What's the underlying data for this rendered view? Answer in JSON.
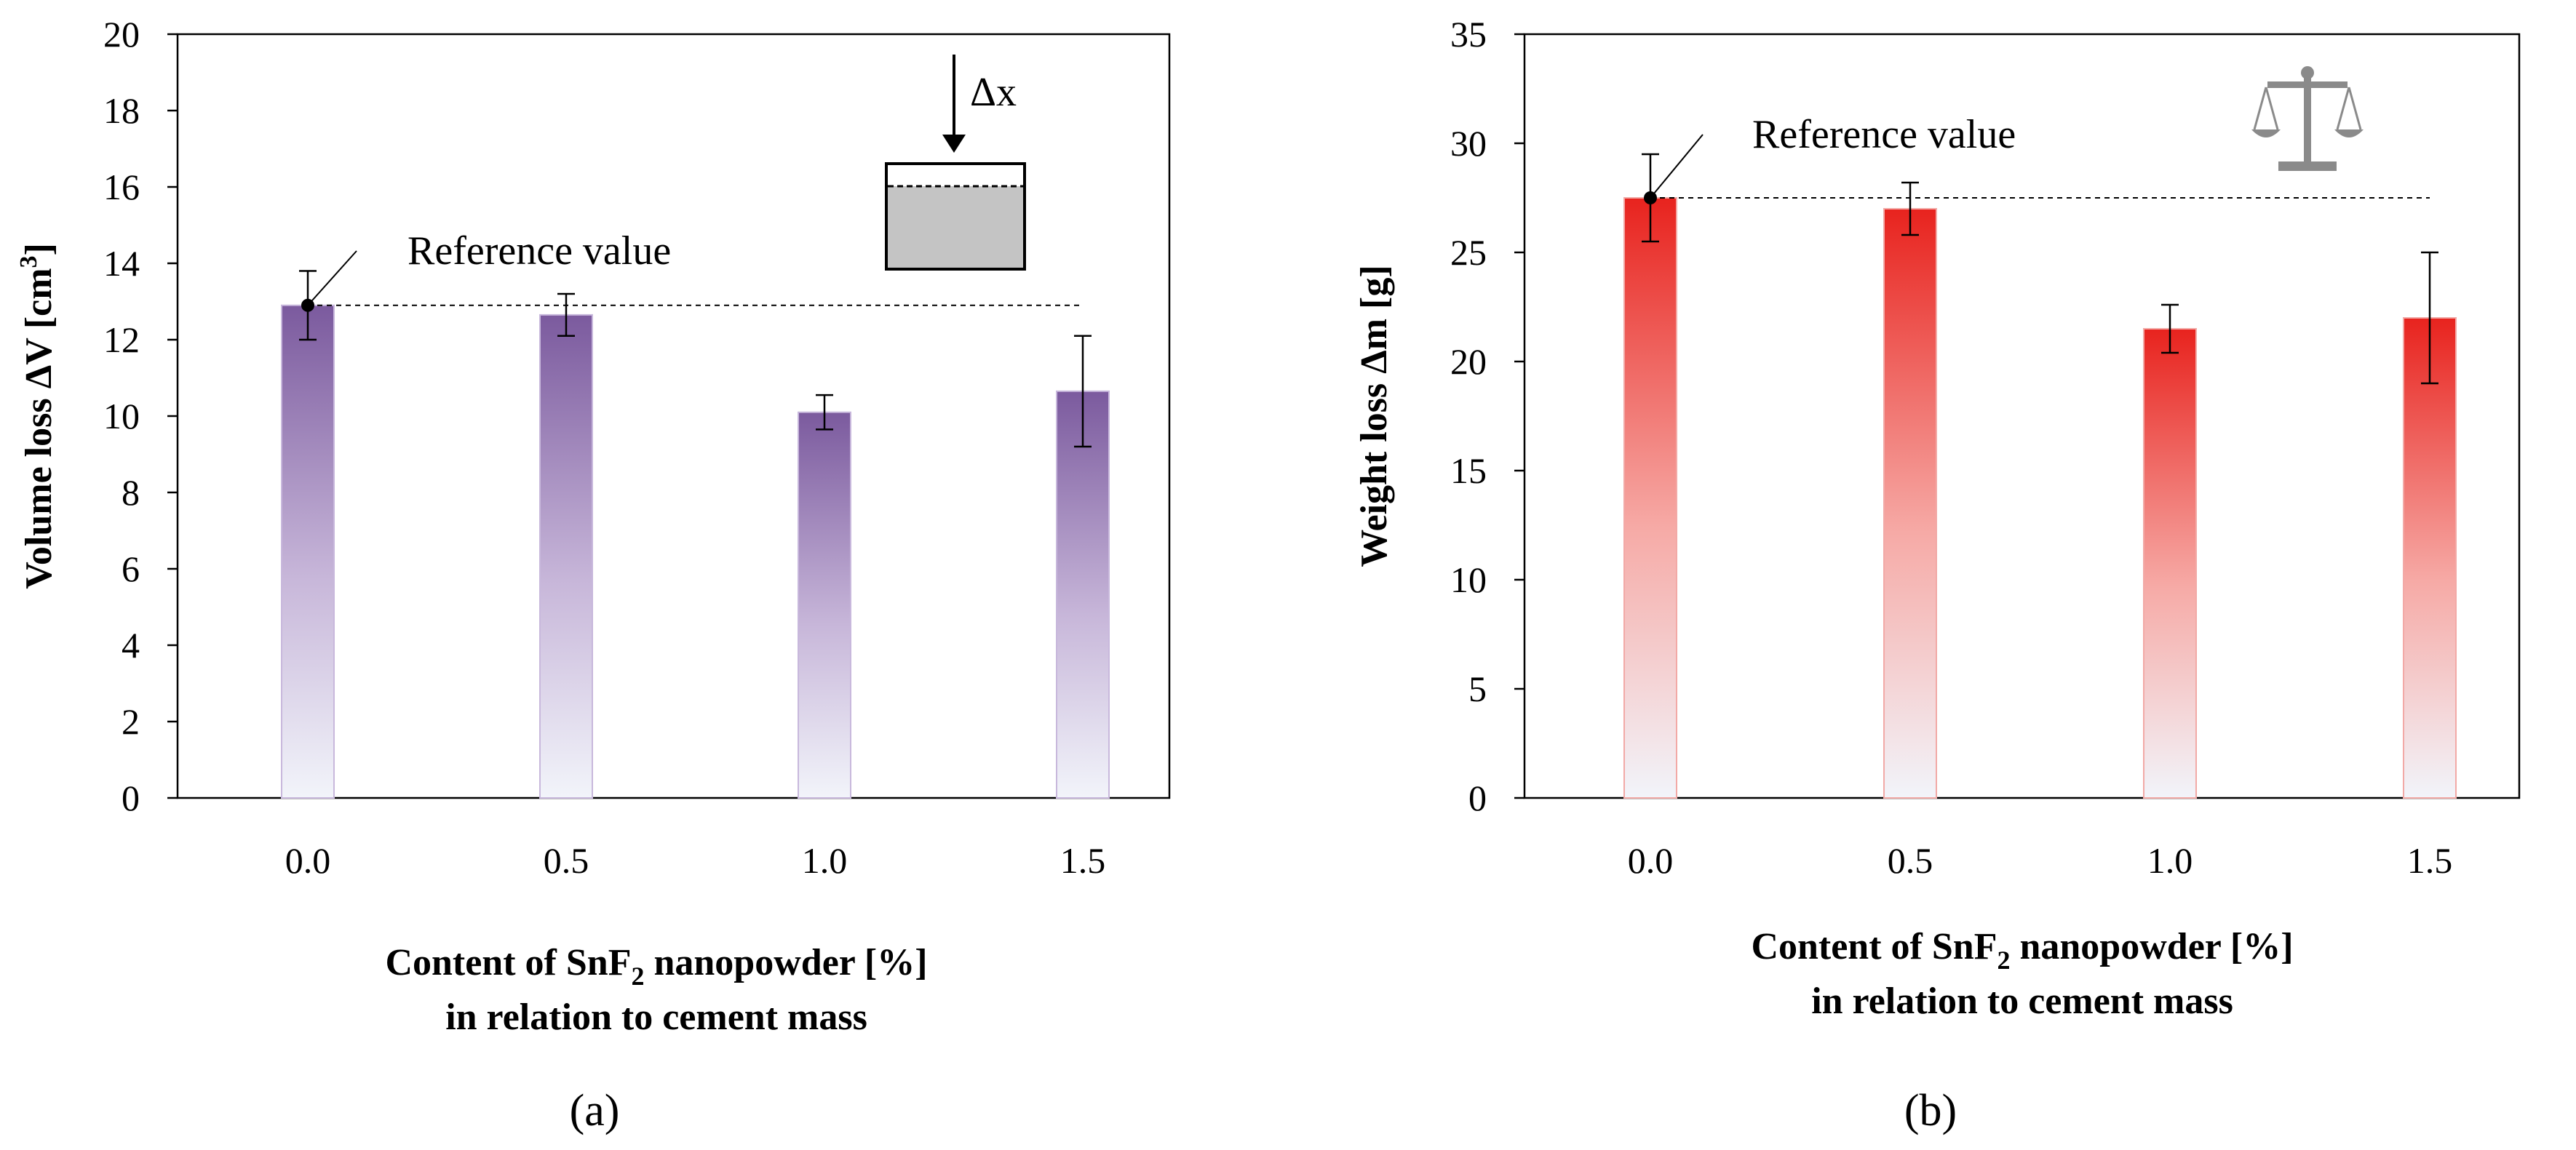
{
  "chart_data": [
    {
      "type": "bar",
      "panel_label": "(a)",
      "categories": [
        "0.0",
        "0.5",
        "1.0",
        "1.5"
      ],
      "values": [
        12.9,
        12.65,
        10.1,
        10.65
      ],
      "error": [
        0.9,
        0.55,
        0.45,
        1.45
      ],
      "ylim": [
        0,
        20
      ],
      "yticks": [
        0,
        2,
        4,
        6,
        8,
        10,
        12,
        14,
        16,
        18,
        20
      ],
      "ytick_labels": [
        "0",
        "2",
        "4",
        "6",
        "8",
        "10",
        "12",
        "14",
        "16",
        "18",
        "20"
      ],
      "ylabel_main": "Volume loss ΔV [cm",
      "ylabel_sup": "3",
      "ylabel_end": "]",
      "xlabel_line1_pre": "Content of SnF",
      "xlabel_line1_sub": "2",
      "xlabel_line1_post": " nanopowder [%]",
      "xlabel_line2": "in relation to cement mass",
      "reference_label": "Reference value",
      "reference_value": 12.9,
      "inset_label": "Δx",
      "bar_color": "#7b5a9e",
      "grid": false
    },
    {
      "type": "bar",
      "panel_label": "(b)",
      "categories": [
        "0.0",
        "0.5",
        "1.0",
        "1.5"
      ],
      "values": [
        27.5,
        27.0,
        21.5,
        22.0
      ],
      "error": [
        2.0,
        1.2,
        1.1,
        3.0
      ],
      "ylim": [
        0,
        35
      ],
      "yticks": [
        0,
        5,
        10,
        15,
        20,
        25,
        30,
        35
      ],
      "ytick_labels": [
        "0",
        "5",
        "10",
        "15",
        "20",
        "25",
        "30",
        "35"
      ],
      "ylabel_main": "Weight loss Δm [g]",
      "xlabel_line1_pre": "Content of SnF",
      "xlabel_line1_sub": "2",
      "xlabel_line1_post": " nanopowder [%]",
      "xlabel_line2": "in relation to cement mass",
      "reference_label": "Reference value",
      "reference_value": 27.5,
      "bar_color": "#e8231e",
      "grid": false
    }
  ]
}
